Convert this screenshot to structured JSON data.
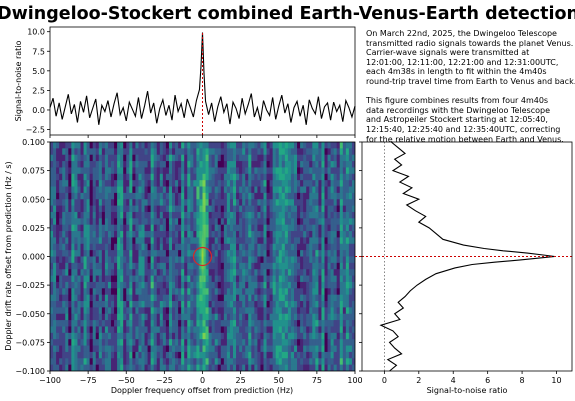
{
  "title": "Dwingeloo-Stockert combined Earth-Venus-Earth detection",
  "description": {
    "paragraph1": [
      "On March 22nd, 2025, the Dwingeloo Telescope",
      "transmitted radio signals towards the planet Venus.",
      "Carrier-wave signals were transmitted at",
      "12:01:00, 12:11:00, 12:21:00 and 12:31:00UTC,",
      "each 4m38s in length to fit within the 4m40s",
      "round-trip travel time from Earth to Venus and back."
    ],
    "paragraph2": [
      "This figure combines results from four 4m40s",
      "data recordings with the Dwingeloo Telescope",
      "and Astropeiler Stockert starting at 12:05:40,",
      "12:15:40, 12:25:40 and 12:35:40UTC, correcting",
      "for the relative motion between Earth and Venus."
    ]
  },
  "chart_data": [
    {
      "type": "line",
      "panel": "top",
      "ylabel": "Signal-to-noise ratio",
      "xlim": [
        -100,
        100
      ],
      "ylim": [
        -3.2,
        10.6
      ],
      "yticks": [
        10.0,
        7.5,
        5.0,
        2.5,
        0.0,
        -2.5
      ],
      "yticklabels": [
        "10.0",
        "7.5",
        "5.0",
        "2.5",
        "0.0",
        "−2.5"
      ],
      "marker_x": 0,
      "series": [
        {
          "x": [
            -100,
            -98,
            -96,
            -94,
            -92,
            -90,
            -88,
            -86,
            -84,
            -82,
            -80,
            -78,
            -76,
            -74,
            -72,
            -70,
            -68,
            -66,
            -64,
            -62,
            -60,
            -58,
            -56,
            -54,
            -52,
            -50,
            -48,
            -46,
            -44,
            -42,
            -40,
            -38,
            -36,
            -34,
            -32,
            -30,
            -28,
            -26,
            -24,
            -22,
            -20,
            -18,
            -16,
            -14,
            -12,
            -10,
            -8,
            -6,
            -4,
            -2,
            -1,
            0,
            1,
            2,
            4,
            6,
            8,
            10,
            12,
            14,
            16,
            18,
            20,
            22,
            24,
            26,
            28,
            30,
            32,
            34,
            36,
            38,
            40,
            42,
            44,
            46,
            48,
            50,
            52,
            54,
            56,
            58,
            60,
            62,
            64,
            66,
            68,
            70,
            72,
            74,
            76,
            78,
            80,
            82,
            84,
            86,
            88,
            90,
            92,
            94,
            96,
            98,
            100
          ],
          "y": [
            0.3,
            1.5,
            -0.8,
            0.9,
            -1.2,
            0.4,
            2.0,
            -0.5,
            0.7,
            -1.6,
            1.1,
            -0.3,
            1.8,
            -1.0,
            0.2,
            1.4,
            -1.9,
            0.6,
            -0.2,
            1.2,
            -0.9,
            0.8,
            2.2,
            -0.6,
            0.3,
            -1.4,
            1.0,
            0.1,
            -0.8,
            1.6,
            -1.1,
            0.5,
            2.4,
            -0.4,
            0.9,
            -1.7,
            0.2,
            1.3,
            -0.7,
            0.6,
            -1.3,
            1.9,
            -0.2,
            0.8,
            -1.0,
            1.4,
            0.3,
            -0.9,
            1.2,
            2.6,
            5.5,
            9.9,
            4.6,
            1.1,
            -0.6,
            0.9,
            -1.5,
            0.4,
            1.7,
            -0.3,
            0.8,
            -1.8,
            1.0,
            0.2,
            -1.1,
            1.5,
            -0.5,
            0.7,
            2.1,
            -0.9,
            0.3,
            -1.4,
            1.2,
            0.0,
            -0.7,
            1.6,
            -1.2,
            0.5,
            1.9,
            -0.4,
            0.8,
            -1.6,
            0.3,
            1.1,
            -0.8,
            0.6,
            -1.9,
            1.3,
            0.2,
            -0.5,
            1.7,
            -1.1,
            0.4,
            0.9,
            -1.3,
            1.0,
            -0.2,
            0.6,
            -1.5,
            1.2,
            0.3,
            -0.9,
            0.5
          ]
        }
      ]
    },
    {
      "type": "heatmap",
      "panel": "main",
      "xlabel": "Doppler frequency offset from prediction (Hz)",
      "ylabel": "Doppler drift rate offset from prediction (Hz / s)",
      "xlim": [
        -100,
        100
      ],
      "ylim": [
        -0.1,
        0.1
      ],
      "xticks": [
        -100,
        -75,
        -50,
        -25,
        0,
        25,
        50,
        75,
        100
      ],
      "xticklabels": [
        "−100",
        "−75",
        "−50",
        "−25",
        "0",
        "25",
        "50",
        "75",
        "100"
      ],
      "yticks": [
        0.1,
        0.075,
        0.05,
        0.025,
        0.0,
        -0.025,
        -0.05,
        -0.075,
        -0.1
      ],
      "yticklabels": [
        "0.100",
        "0.075",
        "0.050",
        "0.025",
        "0.000",
        "−0.025",
        "−0.050",
        "−0.075",
        "−0.100"
      ],
      "detection": {
        "x": 0,
        "y": 0.0
      },
      "colormap": "viridis"
    },
    {
      "type": "line",
      "panel": "right",
      "xlabel": "Signal-to-noise ratio",
      "xlim": [
        -1.3,
        10.9
      ],
      "ylim": [
        -0.1,
        0.1
      ],
      "xticks": [
        0,
        2,
        4,
        6,
        8,
        10
      ],
      "xticklabels": [
        "0",
        "2",
        "4",
        "6",
        "8",
        "10"
      ],
      "marker_y": 0.0,
      "series": [
        {
          "y": [
            0.1,
            0.095,
            0.09,
            0.085,
            0.08,
            0.075,
            0.07,
            0.065,
            0.06,
            0.055,
            0.05,
            0.045,
            0.04,
            0.035,
            0.03,
            0.025,
            0.02,
            0.015,
            0.01,
            0.007,
            0.005,
            0.003,
            0.001,
            0.0,
            -0.001,
            -0.003,
            -0.005,
            -0.007,
            -0.01,
            -0.015,
            -0.02,
            -0.025,
            -0.03,
            -0.035,
            -0.04,
            -0.045,
            -0.05,
            -0.055,
            -0.06,
            -0.065,
            -0.07,
            -0.075,
            -0.08,
            -0.085,
            -0.09,
            -0.095,
            -0.1
          ],
          "x": [
            0.4,
            0.8,
            1.2,
            0.6,
            1.0,
            0.5,
            1.4,
            0.9,
            1.6,
            1.1,
            2.0,
            1.3,
            1.8,
            2.4,
            2.0,
            2.6,
            3.0,
            3.4,
            4.6,
            5.8,
            6.9,
            8.3,
            9.4,
            9.9,
            9.2,
            7.9,
            6.4,
            5.1,
            4.1,
            3.0,
            2.4,
            1.9,
            1.5,
            1.2,
            0.8,
            1.1,
            0.6,
            0.9,
            -0.2,
            0.5,
            0.8,
            0.3,
            0.6,
            1.0,
            0.2,
            0.7,
            0.3
          ]
        }
      ]
    }
  ]
}
